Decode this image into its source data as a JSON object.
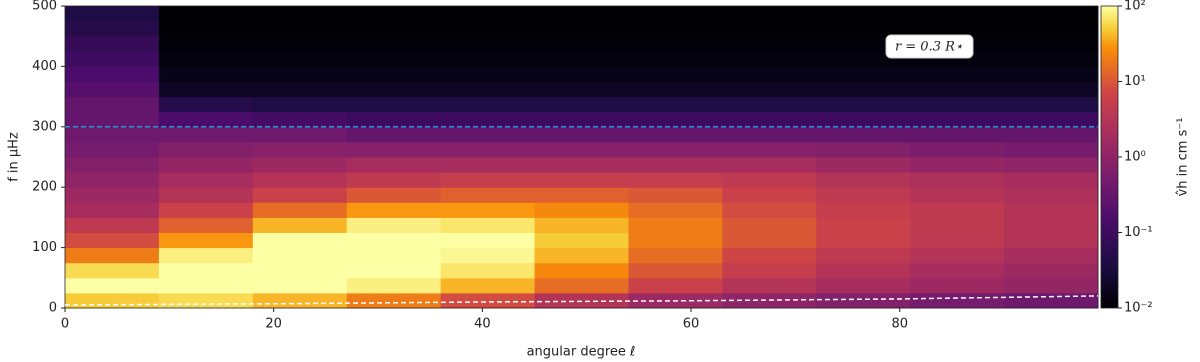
{
  "chart_data": {
    "type": "heatmap",
    "xlabel": "angular degree ℓ",
    "ylabel": "f in μHz",
    "colorbar_label": "v̂h in cm s⁻¹",
    "annotation": "r = 0.3 R⋆",
    "colormap": "inferno",
    "log_color": true,
    "xlim": [
      0,
      99
    ],
    "ylim": [
      0,
      500
    ],
    "xticks": [
      0,
      20,
      40,
      60,
      80
    ],
    "yticks": [
      0,
      100,
      200,
      300,
      400,
      500
    ],
    "clim": [
      0.01,
      100
    ],
    "cticks": [
      {
        "value": 0.01,
        "label": "10⁻²"
      },
      {
        "value": 0.1,
        "label": "10⁻¹"
      },
      {
        "value": 1,
        "label": "10⁰"
      },
      {
        "value": 10,
        "label": "10¹"
      },
      {
        "value": 100,
        "label": "10²"
      }
    ],
    "xbins": [
      0,
      9,
      18,
      27,
      36,
      45,
      54,
      63,
      72,
      81,
      90,
      99
    ],
    "ybins": [
      0,
      25,
      50,
      75,
      100,
      125,
      150,
      175,
      200,
      225,
      250,
      275,
      300,
      325,
      350,
      375,
      400,
      425,
      450,
      475,
      500
    ],
    "z": [
      [
        50,
        60,
        40,
        20,
        8,
        3,
        1.5,
        1,
        0.7,
        0.5,
        0.4
      ],
      [
        100,
        150,
        120,
        80,
        40,
        15,
        6,
        3,
        2,
        1.5,
        1.2
      ],
      [
        60,
        150,
        150,
        120,
        70,
        25,
        10,
        5,
        3,
        2,
        1.5
      ],
      [
        20,
        80,
        150,
        150,
        90,
        40,
        15,
        7,
        4,
        3,
        2
      ],
      [
        8,
        30,
        100,
        150,
        100,
        50,
        20,
        10,
        6,
        4,
        3
      ],
      [
        4,
        12,
        40,
        80,
        70,
        40,
        20,
        10,
        6,
        4,
        3
      ],
      [
        2,
        6,
        15,
        30,
        30,
        25,
        15,
        8,
        5,
        4,
        3
      ],
      [
        1.5,
        3,
        6,
        10,
        12,
        12,
        10,
        6,
        4,
        3,
        2.5
      ],
      [
        1,
        2,
        3,
        4,
        5,
        5,
        5,
        4,
        3,
        2.5,
        2
      ],
      [
        0.7,
        1.2,
        1.5,
        2,
        2,
        2,
        2,
        2,
        1.5,
        1.2,
        1
      ],
      [
        0.5,
        0.7,
        0.8,
        0.8,
        0.8,
        0.8,
        0.8,
        0.8,
        0.7,
        0.6,
        0.5
      ],
      [
        0.4,
        0.4,
        0.4,
        0.3,
        0.3,
        0.3,
        0.3,
        0.3,
        0.3,
        0.3,
        0.3
      ],
      [
        0.3,
        0.15,
        0.12,
        0.1,
        0.1,
        0.1,
        0.1,
        0.1,
        0.1,
        0.1,
        0.1
      ],
      [
        0.3,
        0.05,
        0.04,
        0.04,
        0.04,
        0.04,
        0.04,
        0.04,
        0.04,
        0.04,
        0.04
      ],
      [
        0.2,
        0.02,
        0.02,
        0.02,
        0.02,
        0.02,
        0.02,
        0.02,
        0.02,
        0.02,
        0.02
      ],
      [
        0.15,
        0.015,
        0.015,
        0.015,
        0.015,
        0.015,
        0.015,
        0.015,
        0.015,
        0.015,
        0.015
      ],
      [
        0.1,
        0.012,
        0.012,
        0.012,
        0.012,
        0.012,
        0.012,
        0.012,
        0.012,
        0.012,
        0.012
      ],
      [
        0.08,
        0.011,
        0.011,
        0.011,
        0.011,
        0.011,
        0.011,
        0.011,
        0.011,
        0.011,
        0.011
      ],
      [
        0.05,
        0.01,
        0.01,
        0.01,
        0.01,
        0.01,
        0.01,
        0.01,
        0.01,
        0.01,
        0.01
      ],
      [
        0.04,
        0.01,
        0.01,
        0.01,
        0.01,
        0.01,
        0.01,
        0.01,
        0.01,
        0.01,
        0.01
      ]
    ],
    "lines": [
      {
        "color": "#1f9bd0",
        "x": [
          0,
          99
        ],
        "y": [
          300,
          300
        ]
      },
      {
        "color": "#ffffff",
        "x": [
          0,
          20,
          40,
          60,
          80,
          99
        ],
        "y": [
          5,
          7,
          10,
          12,
          15,
          20
        ]
      }
    ]
  }
}
